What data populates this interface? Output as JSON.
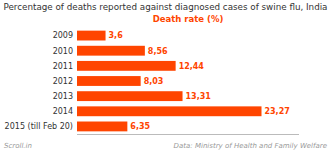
{
  "chart_data": {
    "type": "bar",
    "orientation": "horizontal",
    "title": "Percentage of deaths reported against diagnosed cases of swine flu, India",
    "xlabel": "Death rate (%)",
    "annotations": [
      "Scroll.in",
      "Data: Ministry of Health and Family Welfare"
    ],
    "categories": [
      "2009",
      "2010",
      "2011",
      "2012",
      "2013",
      "2014",
      "2015 (till Feb 20)"
    ],
    "values": [
      3.6,
      8.56,
      12.44,
      8.03,
      13.31,
      23.27,
      6.35
    ],
    "value_labels": [
      "3,6",
      "8,56",
      "12,44",
      "8,03",
      "13,31",
      "23,27",
      "6,35"
    ],
    "data_labels": true,
    "color": "#FF4500",
    "xlim": [
      0,
      28
    ],
    "tick_labels": "y",
    "grid": false
  }
}
